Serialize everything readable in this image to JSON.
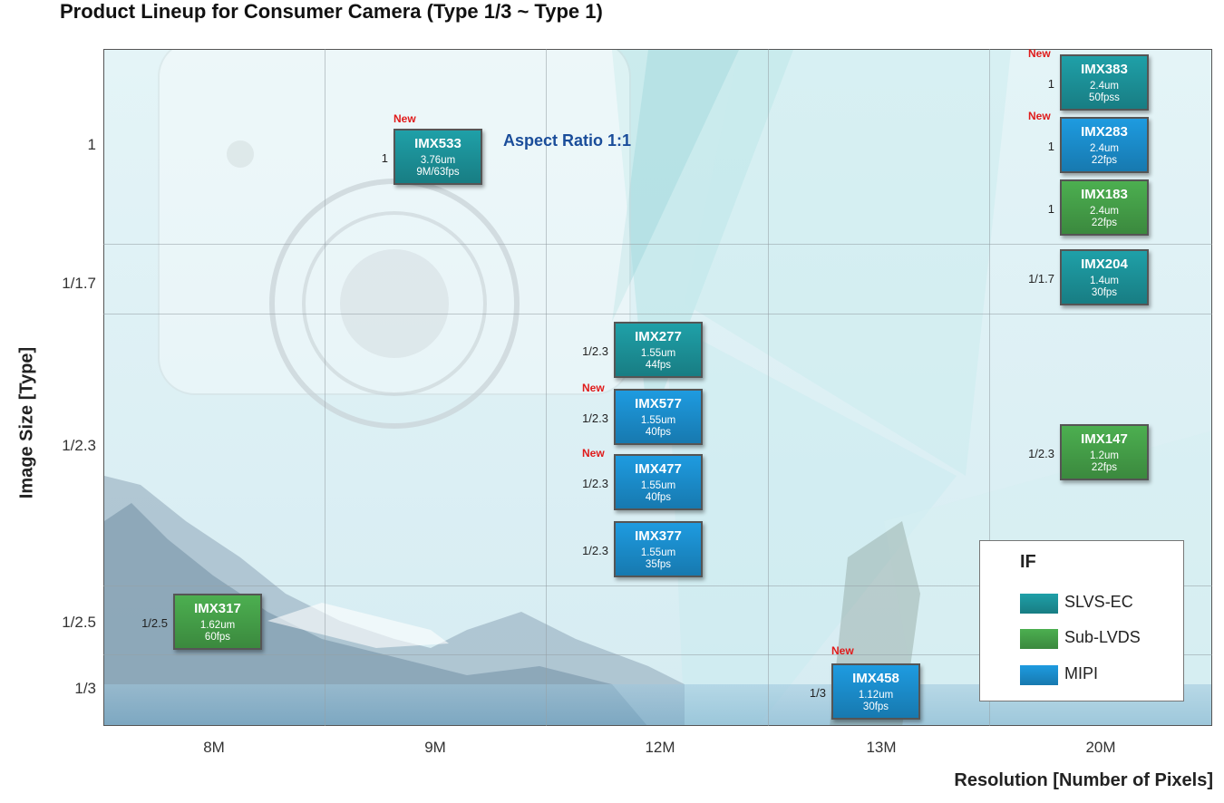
{
  "chart_data": {
    "type": "scatter",
    "title": "Product Lineup for Consumer Camera (Type 1/3 ~ Type 1)",
    "xlabel": "Resolution  [Number of Pixels]",
    "ylabel": "Image Size [Type]",
    "x_categories": [
      "8M",
      "9M",
      "12M",
      "13M",
      "20M"
    ],
    "y_categories": [
      "1",
      "1/1.7",
      "1/2.3",
      "1/2.5",
      "1/3"
    ],
    "annotation": "Aspect Ratio 1:1",
    "legend": {
      "title": "IF",
      "items": [
        {
          "name": "SLVS-EC",
          "color": "#1fa0a8"
        },
        {
          "name": "Sub-LVDS",
          "color": "#4caf50"
        },
        {
          "name": "MIPI",
          "color": "#1e9be0"
        }
      ]
    },
    "products": [
      {
        "name": "IMX533",
        "x": "9M",
        "size": "1",
        "pixel": "3.76um",
        "fps": "9M/63fps",
        "interface": "SLVS-EC",
        "is_new": true
      },
      {
        "name": "IMX277",
        "x": "12M",
        "size": "1/2.3",
        "pixel": "1.55um",
        "fps": "44fps",
        "interface": "SLVS-EC",
        "is_new": false
      },
      {
        "name": "IMX577",
        "x": "12M",
        "size": "1/2.3",
        "pixel": "1.55um",
        "fps": "40fps",
        "interface": "MIPI",
        "is_new": true
      },
      {
        "name": "IMX477",
        "x": "12M",
        "size": "1/2.3",
        "pixel": "1.55um",
        "fps": "40fps",
        "interface": "MIPI",
        "is_new": true
      },
      {
        "name": "IMX377",
        "x": "12M",
        "size": "1/2.3",
        "pixel": "1.55um",
        "fps": "35fps",
        "interface": "MIPI",
        "is_new": false
      },
      {
        "name": "IMX317",
        "x": "8M",
        "size": "1/2.5",
        "pixel": "1.62um",
        "fps": "60fps",
        "interface": "Sub-LVDS",
        "is_new": false
      },
      {
        "name": "IMX458",
        "x": "13M",
        "size": "1/3",
        "pixel": "1.12um",
        "fps": "30fps",
        "interface": "MIPI",
        "is_new": true
      },
      {
        "name": "IMX383",
        "x": "20M",
        "size": "1",
        "pixel": "2.4um",
        "fps": "50fpss",
        "interface": "SLVS-EC",
        "is_new": true
      },
      {
        "name": "IMX283",
        "x": "20M",
        "size": "1",
        "pixel": "2.4um",
        "fps": "22fps",
        "interface": "MIPI",
        "is_new": true
      },
      {
        "name": "IMX183",
        "x": "20M",
        "size": "1",
        "pixel": "2.4um",
        "fps": "22fps",
        "interface": "Sub-LVDS",
        "is_new": false
      },
      {
        "name": "IMX204",
        "x": "20M",
        "size": "1/1.7",
        "pixel": "1.4um",
        "fps": "30fps",
        "interface": "SLVS-EC",
        "is_new": false
      },
      {
        "name": "IMX147",
        "x": "20M",
        "size": "1/2.3",
        "pixel": "1.2um",
        "fps": "22fps",
        "interface": "Sub-LVDS",
        "is_new": false
      }
    ],
    "new_label": "New"
  }
}
